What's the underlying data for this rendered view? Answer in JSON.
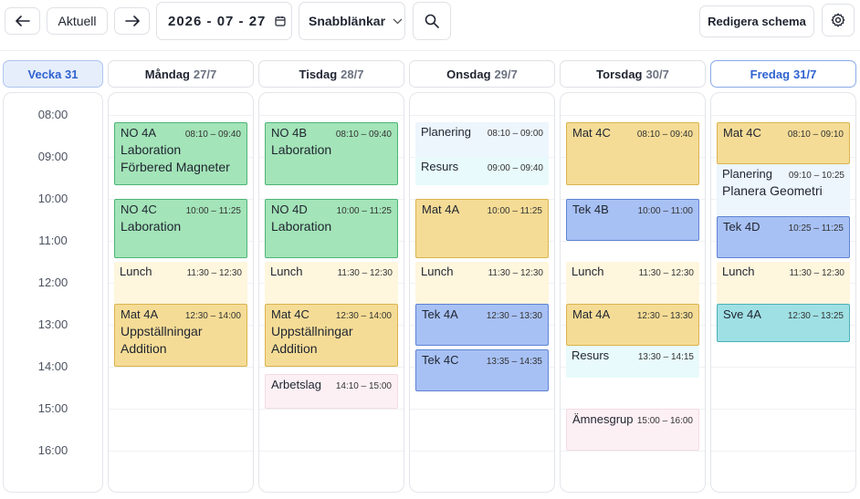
{
  "toolbar": {
    "back_icon": "arrow-left-icon",
    "today_label": "Aktuell",
    "forward_icon": "arrow-right-icon",
    "date_value": "2026 - 07 - 27",
    "calendar_icon": "calendar-icon",
    "quicklinks_label": "Snabblänkar",
    "quicklinks_icon": "chevron-down-icon",
    "search_icon": "search-icon",
    "edit_label": "Redigera schema",
    "settings_icon": "gear-icon"
  },
  "week_label": "Vecka 31",
  "days": [
    {
      "name": "Måndag",
      "date": "27/7"
    },
    {
      "name": "Tisdag",
      "date": "28/7"
    },
    {
      "name": "Onsdag",
      "date": "29/7"
    },
    {
      "name": "Torsdag",
      "date": "30/7"
    },
    {
      "name": "Fredag",
      "date": "31/7"
    }
  ],
  "times": [
    "08:00",
    "09:00",
    "10:00",
    "11:00",
    "12:00",
    "13:00",
    "14:00",
    "15:00",
    "16:00"
  ],
  "events": [
    {
      "day": 0,
      "title": "NO 4A",
      "time": "08:10 – 09:40",
      "desc1": "Laboration",
      "desc2": "Förbered Magneter",
      "color": "green",
      "start": "08:10",
      "end": "09:40"
    },
    {
      "day": 0,
      "title": "NO 4C",
      "time": "10:00 – 11:25",
      "desc1": "Laboration",
      "desc2": "",
      "color": "green",
      "start": "10:00",
      "end": "11:25"
    },
    {
      "day": 0,
      "title": "Lunch",
      "time": "11:30 – 12:30",
      "desc1": "",
      "desc2": "",
      "color": "lunch",
      "start": "11:30",
      "end": "12:30"
    },
    {
      "day": 0,
      "title": "Mat 4A",
      "time": "12:30 – 14:00",
      "desc1": "Uppställningar",
      "desc2": "Addition",
      "color": "yellow",
      "start": "12:30",
      "end": "14:00"
    },
    {
      "day": 1,
      "title": "NO 4B",
      "time": "08:10 – 09:40",
      "desc1": "Laboration",
      "desc2": "",
      "color": "green",
      "start": "08:10",
      "end": "09:40"
    },
    {
      "day": 1,
      "title": "NO 4D",
      "time": "10:00 – 11:25",
      "desc1": "Laboration",
      "desc2": "",
      "color": "green",
      "start": "10:00",
      "end": "11:25"
    },
    {
      "day": 1,
      "title": "Lunch",
      "time": "11:30 – 12:30",
      "desc1": "",
      "desc2": "",
      "color": "lunch",
      "start": "11:30",
      "end": "12:30"
    },
    {
      "day": 1,
      "title": "Mat 4C",
      "time": "12:30 – 14:00",
      "desc1": "Uppställningar",
      "desc2": "Addition",
      "color": "yellow",
      "start": "12:30",
      "end": "14:00"
    },
    {
      "day": 1,
      "title": "Arbetslag",
      "time": "14:10 – 15:00",
      "desc1": "",
      "desc2": "",
      "color": "pink",
      "start": "14:10",
      "end": "15:00"
    },
    {
      "day": 2,
      "title": "Planering",
      "time": "08:10 – 09:00",
      "desc1": "",
      "desc2": "",
      "color": "pale",
      "start": "08:10",
      "end": "09:00"
    },
    {
      "day": 2,
      "title": "Resurs",
      "time": "09:00 – 09:40",
      "desc1": "",
      "desc2": "",
      "color": "cyan",
      "start": "09:00",
      "end": "09:40"
    },
    {
      "day": 2,
      "title": "Mat 4A",
      "time": "10:00 – 11:25",
      "desc1": "",
      "desc2": "",
      "color": "yellow",
      "start": "10:00",
      "end": "11:25"
    },
    {
      "day": 2,
      "title": "Lunch",
      "time": "11:30 – 12:30",
      "desc1": "",
      "desc2": "",
      "color": "lunch",
      "start": "11:30",
      "end": "12:30"
    },
    {
      "day": 2,
      "title": "Tek 4A",
      "time": "12:30 – 13:30",
      "desc1": "",
      "desc2": "",
      "color": "blue",
      "start": "12:30",
      "end": "13:30"
    },
    {
      "day": 2,
      "title": "Tek 4C",
      "time": "13:35 – 14:35",
      "desc1": "",
      "desc2": "",
      "color": "blue",
      "start": "13:35",
      "end": "14:35"
    },
    {
      "day": 3,
      "title": "Mat 4C",
      "time": "08:10 – 09:40",
      "desc1": "",
      "desc2": "",
      "color": "yellow",
      "start": "08:10",
      "end": "09:40"
    },
    {
      "day": 3,
      "title": "Tek 4B",
      "time": "10:00 – 11:00",
      "desc1": "",
      "desc2": "",
      "color": "blue",
      "start": "10:00",
      "end": "11:00"
    },
    {
      "day": 3,
      "title": "Lunch",
      "time": "11:30 – 12:30",
      "desc1": "",
      "desc2": "",
      "color": "lunch",
      "start": "11:30",
      "end": "12:30"
    },
    {
      "day": 3,
      "title": "Mat 4A",
      "time": "12:30 – 13:30",
      "desc1": "",
      "desc2": "",
      "color": "yellow",
      "start": "12:30",
      "end": "13:30"
    },
    {
      "day": 3,
      "title": "Resurs",
      "time": "13:30 – 14:15",
      "desc1": "",
      "desc2": "",
      "color": "cyan",
      "start": "13:30",
      "end": "14:15"
    },
    {
      "day": 3,
      "title": "Ämnesgrup",
      "time": "15:00 – 16:00",
      "desc1": "",
      "desc2": "",
      "color": "pink",
      "start": "15:00",
      "end": "16:00"
    },
    {
      "day": 4,
      "title": "Mat 4C",
      "time": "08:10 – 09:10",
      "desc1": "",
      "desc2": "",
      "color": "yellow",
      "start": "08:10",
      "end": "09:10"
    },
    {
      "day": 4,
      "title": "Planering",
      "time": "09:10 – 10:25",
      "desc1": "Planera Geometri",
      "desc2": "",
      "color": "pale",
      "start": "09:10",
      "end": "10:25"
    },
    {
      "day": 4,
      "title": "Tek 4D",
      "time": "10:25 – 11:25",
      "desc1": "",
      "desc2": "",
      "color": "blue",
      "start": "10:25",
      "end": "11:25"
    },
    {
      "day": 4,
      "title": "Lunch",
      "time": "11:30 – 12:30",
      "desc1": "",
      "desc2": "",
      "color": "lunch",
      "start": "11:30",
      "end": "12:30"
    },
    {
      "day": 4,
      "title": "Sve 4A",
      "time": "12:30 – 13:25",
      "desc1": "",
      "desc2": "",
      "color": "teal",
      "start": "12:30",
      "end": "13:25"
    }
  ]
}
